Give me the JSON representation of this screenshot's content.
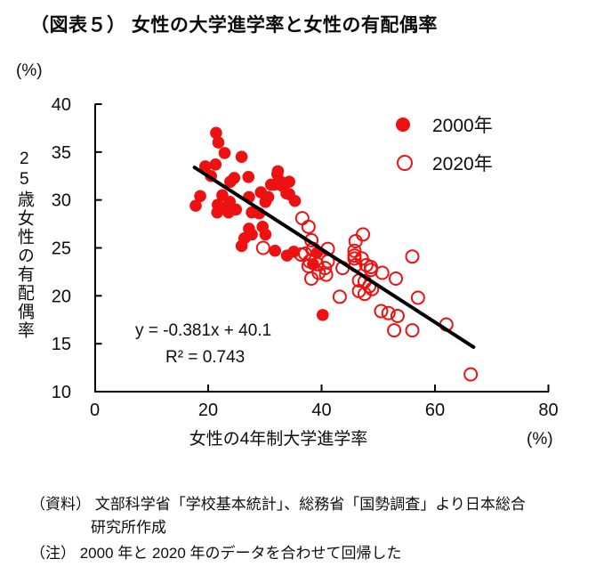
{
  "title": "（図表５） 女性の大学進学率と女性の有配偶率",
  "footnotes": {
    "source_line1": "（資料） 文部科学省「学校基本統計」、総務省「国勢調査」より日本総合",
    "source_line2": "研究所作成",
    "note": "（注） 2000 年と 2020 年のデータを合わせて回帰した"
  },
  "chart_data": {
    "type": "scatter",
    "title": "女性の大学進学率と女性の有配偶率",
    "xlabel": "女性の4年制大学進学率",
    "ylabel": "25歳女性の有配偶率",
    "x_unit": "(%)",
    "y_unit": "(%)",
    "xlim": [
      0,
      80
    ],
    "ylim": [
      10,
      40
    ],
    "xticks": [
      0,
      20,
      40,
      60,
      80
    ],
    "yticks": [
      40,
      35,
      30,
      25,
      20,
      15,
      10
    ],
    "grid": false,
    "legend_position": "top-right",
    "axis_color": "#000000",
    "series": [
      {
        "name": "2000年",
        "marker": "filled-circle",
        "color": "#ee1111",
        "points": [
          [
            21.4,
            37.0
          ],
          [
            21.8,
            36.0
          ],
          [
            22.9,
            34.9
          ],
          [
            25.9,
            34.5
          ],
          [
            21.3,
            33.7
          ],
          [
            19.5,
            33.5
          ],
          [
            20.5,
            32.5
          ],
          [
            24.6,
            32.3
          ],
          [
            27.1,
            32.4
          ],
          [
            32.3,
            33.0
          ],
          [
            32.8,
            31.9
          ],
          [
            18.6,
            30.4
          ],
          [
            22.5,
            30.5
          ],
          [
            23.9,
            31.9
          ],
          [
            17.8,
            29.4
          ],
          [
            21.6,
            28.7
          ],
          [
            23.0,
            29.2
          ],
          [
            24.9,
            29.0
          ],
          [
            29.0,
            28.6
          ],
          [
            27.7,
            28.7
          ],
          [
            29.3,
            30.8
          ],
          [
            30.6,
            30.3
          ],
          [
            30.1,
            29.8
          ],
          [
            31.7,
            31.6
          ],
          [
            34.3,
            30.6
          ],
          [
            27.2,
            30.3
          ],
          [
            32.2,
            32.7
          ],
          [
            31.1,
            31.6
          ],
          [
            33.0,
            31.5
          ],
          [
            34.3,
            31.9
          ],
          [
            33.8,
            30.7
          ],
          [
            35.3,
            29.9
          ],
          [
            21.7,
            29.5
          ],
          [
            23.8,
            29.8
          ],
          [
            23.6,
            28.7
          ],
          [
            27.2,
            27.0
          ],
          [
            29.6,
            27.2
          ],
          [
            26.4,
            26.0
          ],
          [
            25.9,
            25.2
          ],
          [
            27.7,
            26.4
          ],
          [
            30.1,
            26.4
          ],
          [
            31.8,
            24.7
          ],
          [
            33.9,
            24.2
          ],
          [
            35.1,
            24.6
          ],
          [
            39.2,
            24.5
          ],
          [
            38.5,
            23.3
          ],
          [
            40.2,
            18.0
          ]
        ]
      },
      {
        "name": "2020年",
        "marker": "open-circle",
        "color": "#ee1111",
        "points": [
          [
            36.6,
            28.1
          ],
          [
            37.7,
            27.2
          ],
          [
            38.2,
            25.8
          ],
          [
            38.5,
            24.9
          ],
          [
            36.4,
            24.3
          ],
          [
            41.1,
            24.9
          ],
          [
            37.9,
            23.6
          ],
          [
            39.2,
            23.3
          ],
          [
            29.7,
            25.0
          ],
          [
            47.3,
            26.4
          ],
          [
            46.0,
            25.7
          ],
          [
            45.8,
            24.7
          ],
          [
            45.8,
            23.9
          ],
          [
            46.0,
            23.2
          ],
          [
            48.7,
            23.0
          ],
          [
            40.6,
            22.9
          ],
          [
            37.1,
            24.4
          ],
          [
            41.1,
            23.6
          ],
          [
            37.7,
            23.1
          ],
          [
            39.5,
            22.4
          ],
          [
            38.2,
            21.8
          ],
          [
            40.8,
            22.2
          ],
          [
            43.7,
            22.9
          ],
          [
            45.8,
            24.2
          ],
          [
            47.1,
            23.9
          ],
          [
            47.9,
            23.2
          ],
          [
            48.7,
            22.7
          ],
          [
            50.7,
            22.4
          ],
          [
            46.6,
            21.6
          ],
          [
            47.6,
            21.5
          ],
          [
            48.4,
            21.0
          ],
          [
            46.6,
            20.5
          ],
          [
            47.6,
            20.2
          ],
          [
            43.2,
            19.9
          ],
          [
            48.9,
            20.7
          ],
          [
            50.5,
            18.4
          ],
          [
            51.8,
            18.2
          ],
          [
            53.4,
            17.9
          ],
          [
            52.8,
            16.4
          ],
          [
            56.0,
            16.4
          ],
          [
            57.0,
            19.8
          ],
          [
            56.0,
            24.1
          ],
          [
            53.1,
            21.8
          ],
          [
            62.0,
            17.0
          ],
          [
            66.3,
            11.8
          ]
        ]
      }
    ],
    "trendline": {
      "slope": -0.381,
      "intercept": 40.1,
      "x_start": 17.6,
      "x_end": 66.8,
      "color": "#000000",
      "equation_label": "y = -0.381x + 40.1",
      "r_squared_label": "R² = 0.743"
    }
  }
}
